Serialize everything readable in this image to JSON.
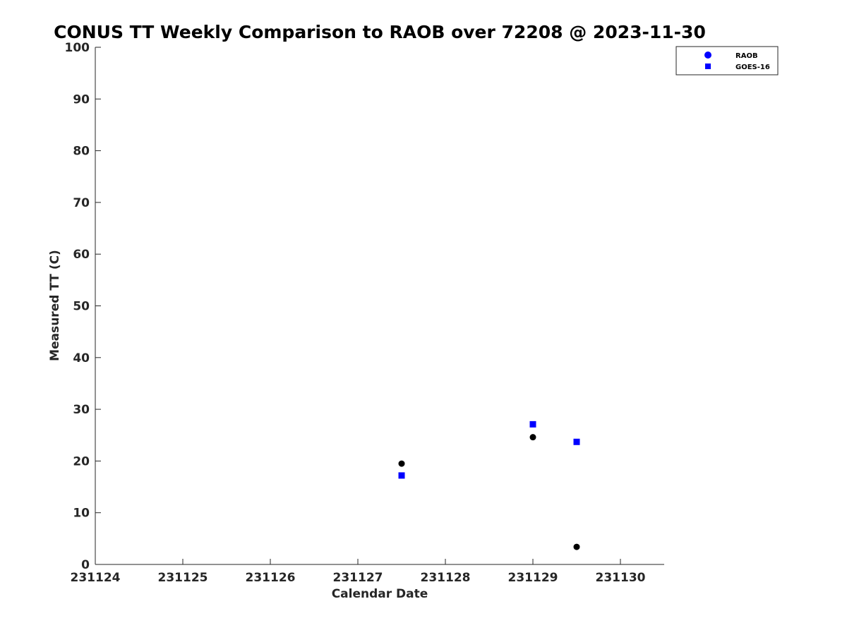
{
  "chart_data": {
    "type": "scatter",
    "title": "CONUS TT Weekly Comparison to RAOB over 72208 @ 2023-11-30",
    "xlabel": "Calendar Date",
    "ylabel": "Measured TT (C)",
    "x_tick_labels": [
      "231124",
      "231125",
      "231126",
      "231127",
      "231128",
      "231129",
      "231130"
    ],
    "y_ticks": [
      0,
      10,
      20,
      30,
      40,
      50,
      60,
      70,
      80,
      90,
      100
    ],
    "xlim_days": [
      0,
      6.5
    ],
    "ylim": [
      0,
      100
    ],
    "legend_position": "top-right",
    "series": [
      {
        "name": "RAOB",
        "marker": "circle",
        "color": "#000000",
        "legend_color": "#0000ff",
        "points": [
          {
            "x": "231127.5",
            "y": 19.5
          },
          {
            "x": "231129",
            "y": 24.6
          },
          {
            "x": "231129.5",
            "y": 3.4
          }
        ]
      },
      {
        "name": "GOES-16",
        "marker": "square",
        "color": "#0000ff",
        "legend_color": "#0000ff",
        "points": [
          {
            "x": "231127.5",
            "y": 17.2
          },
          {
            "x": "231129",
            "y": 27.1
          },
          {
            "x": "231129.5",
            "y": 23.7
          }
        ]
      }
    ]
  }
}
